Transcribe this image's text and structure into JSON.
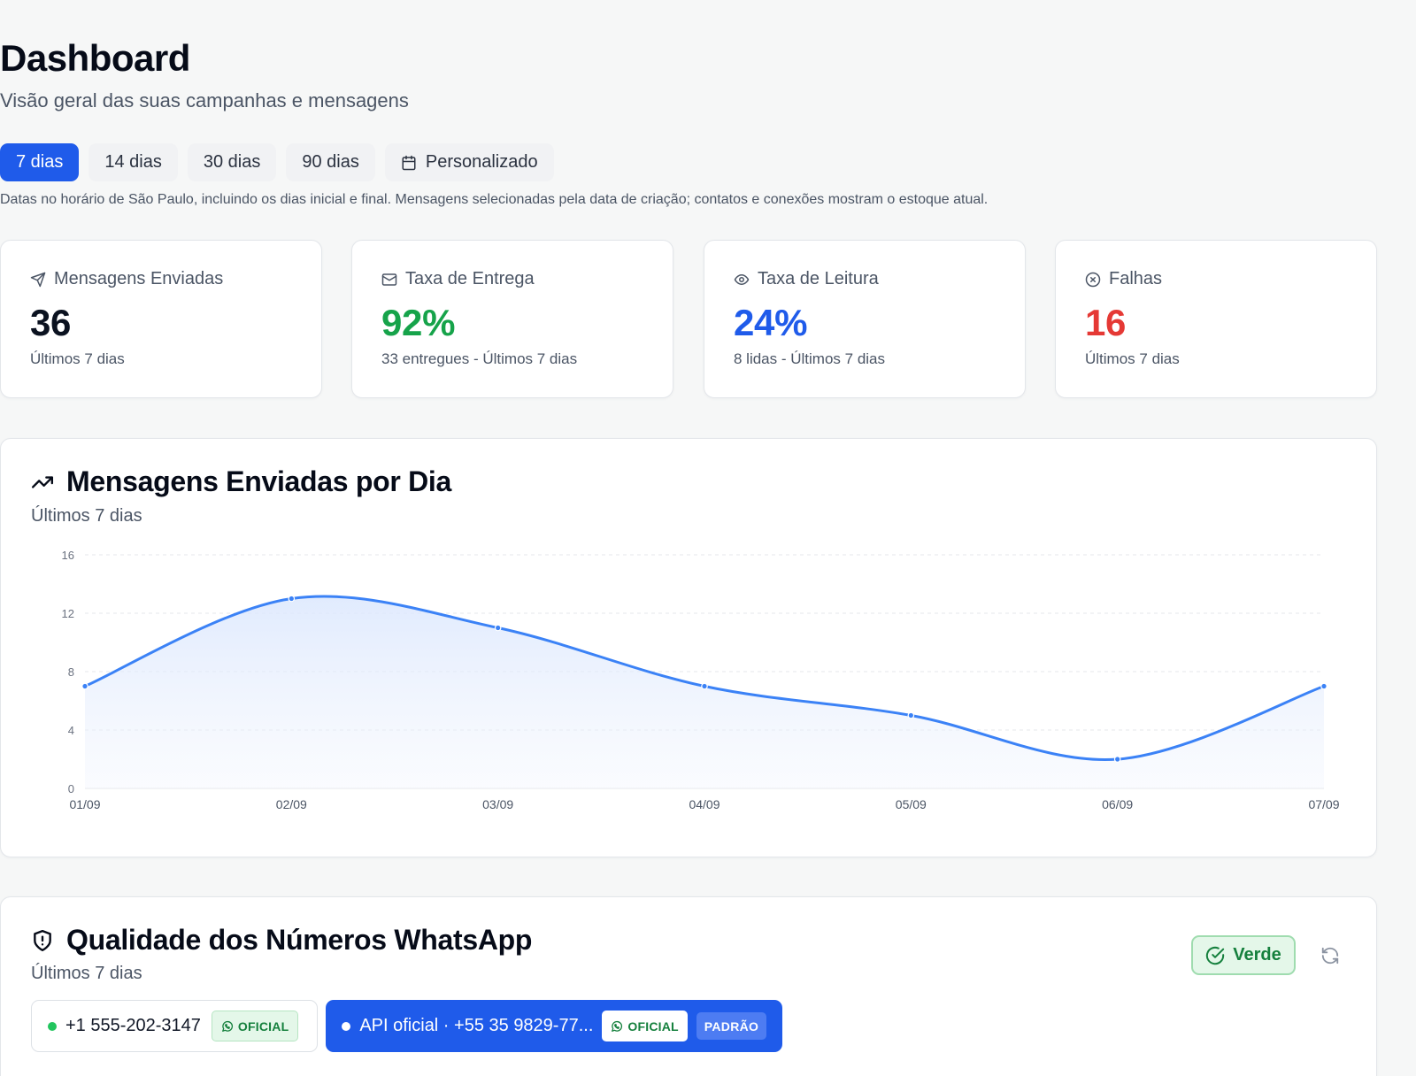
{
  "header": {
    "title": "Dashboard",
    "subtitle": "Visão geral das suas campanhas e mensagens"
  },
  "ranges": {
    "options": [
      "7 dias",
      "14 dias",
      "30 dias",
      "90 dias"
    ],
    "custom_label": "Personalizado",
    "selected": "7 dias"
  },
  "note": "Datas no horário de São Paulo, incluindo os dias inicial e final. Mensagens selecionadas pela data de criação; contatos e conexões mostram o estoque atual.",
  "stats": [
    {
      "label": "Mensagens Enviadas",
      "value": "36",
      "sub": "Últimos 7 dias",
      "color": "#0b1220",
      "icon": "send-icon"
    },
    {
      "label": "Taxa de Entrega",
      "value": "92%",
      "sub": "33 entregues - Últimos 7 dias",
      "color": "#16a34a",
      "icon": "mail-icon"
    },
    {
      "label": "Taxa de Leitura",
      "value": "24%",
      "sub": "8 lidas - Últimos 7 dias",
      "color": "#1f5bea",
      "icon": "eye-icon"
    },
    {
      "label": "Falhas",
      "value": "16",
      "sub": "Últimos 7 dias",
      "color": "#e53935",
      "icon": "x-circle-icon"
    }
  ],
  "chart_card": {
    "title": "Mensagens Enviadas por Dia",
    "subtitle": "Últimos 7 dias"
  },
  "chart_data": {
    "type": "area",
    "title": "Mensagens Enviadas por Dia",
    "subtitle": "Últimos 7 dias",
    "categories": [
      "01/09",
      "02/09",
      "03/09",
      "04/09",
      "05/09",
      "06/09",
      "07/09"
    ],
    "series": [
      {
        "values": [
          7,
          13,
          11,
          7,
          5,
          2,
          7
        ]
      }
    ],
    "ylim": [
      0,
      16
    ],
    "yticks": [
      0,
      4,
      8,
      12,
      16
    ],
    "grid": true,
    "line_color": "#3b82f6"
  },
  "quality": {
    "title": "Qualidade dos Números WhatsApp",
    "subtitle": "Últimos 7 dias",
    "status": "Verde",
    "status_color": "#15803d",
    "numbers": [
      {
        "label": "+1 555-202-3147",
        "badge": "OFICIAL",
        "dot_color": "#22c55e"
      },
      {
        "label": "API oficial · +55 35 9829-77...",
        "badge": "OFICIAL",
        "tag": "PADRÃO",
        "dot_color": "#ffffff"
      }
    ]
  }
}
